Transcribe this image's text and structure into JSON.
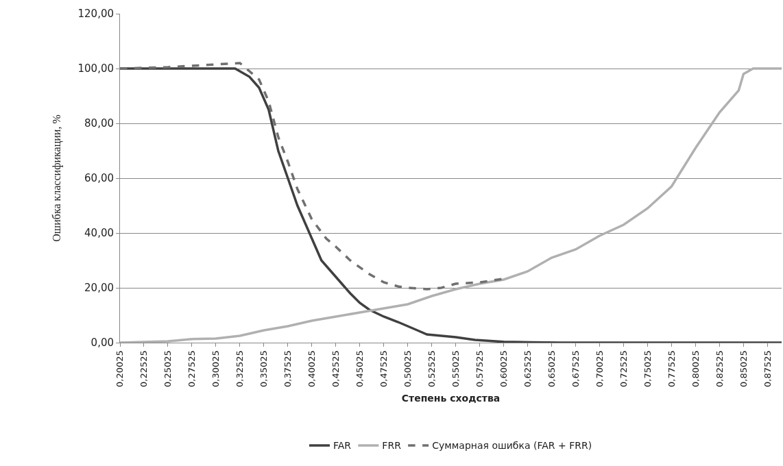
{
  "chart_data": {
    "type": "line",
    "xlabel": "Степень сходства",
    "ylabel": "Ошибка классификации, %",
    "xlim": [
      0.20025,
      0.89
    ],
    "xticks": [
      {
        "value": 0.20025,
        "label": "0,20025"
      },
      {
        "value": 0.22525,
        "label": "0,22525"
      },
      {
        "value": 0.25025,
        "label": "0,25025"
      },
      {
        "value": 0.27525,
        "label": "0,27525"
      },
      {
        "value": 0.30025,
        "label": "0,30025"
      },
      {
        "value": 0.32525,
        "label": "0,32525"
      },
      {
        "value": 0.35025,
        "label": "0,35025"
      },
      {
        "value": 0.37525,
        "label": "0,37525"
      },
      {
        "value": 0.40025,
        "label": "0,40025"
      },
      {
        "value": 0.42525,
        "label": "0,42525"
      },
      {
        "value": 0.45025,
        "label": "0,45025"
      },
      {
        "value": 0.47525,
        "label": "0,47525"
      },
      {
        "value": 0.50025,
        "label": "0,50025"
      },
      {
        "value": 0.52525,
        "label": "0,52525"
      },
      {
        "value": 0.55025,
        "label": "0,55025"
      },
      {
        "value": 0.57525,
        "label": "0,57525"
      },
      {
        "value": 0.60025,
        "label": "0,60025"
      },
      {
        "value": 0.62525,
        "label": "0,62525"
      },
      {
        "value": 0.65025,
        "label": "0,65025"
      },
      {
        "value": 0.67525,
        "label": "0,67525"
      },
      {
        "value": 0.70025,
        "label": "0,70025"
      },
      {
        "value": 0.72525,
        "label": "0,72525"
      },
      {
        "value": 0.75025,
        "label": "0,75025"
      },
      {
        "value": 0.77525,
        "label": "0,77525"
      },
      {
        "value": 0.80025,
        "label": "0,80025"
      },
      {
        "value": 0.82525,
        "label": "0,82525"
      },
      {
        "value": 0.85025,
        "label": "0,85025"
      },
      {
        "value": 0.87525,
        "label": "0,87525"
      }
    ],
    "ylim": [
      0,
      120
    ],
    "yticks": [
      {
        "value": 0,
        "label": "0,00"
      },
      {
        "value": 20,
        "label": "20,00"
      },
      {
        "value": 40,
        "label": "40,00"
      },
      {
        "value": 60,
        "label": "60,00"
      },
      {
        "value": 80,
        "label": "80,00"
      },
      {
        "value": 100,
        "label": "100,00"
      },
      {
        "value": 120,
        "label": "120,00"
      }
    ],
    "grid": "y",
    "legend": "bottom",
    "marker": "none",
    "series": [
      {
        "name": "FAR",
        "color": "#404040",
        "line_style": "solid",
        "x": [
          0.20025,
          0.32025,
          0.33525,
          0.34525,
          0.35525,
          0.36525,
          0.37525,
          0.38525,
          0.39525,
          0.40025,
          0.41025,
          0.42025,
          0.43025,
          0.44025,
          0.45025,
          0.46025,
          0.47525,
          0.49025,
          0.50025,
          0.51025,
          0.52025,
          0.53525,
          0.55025,
          0.57025,
          0.60025,
          0.63025,
          0.66025,
          0.89
        ],
        "values": [
          100,
          100,
          97,
          93,
          85,
          70,
          60,
          50,
          42,
          38,
          30,
          26,
          22,
          18,
          14.5,
          12,
          9.5,
          7.5,
          6,
          4.5,
          3,
          2.5,
          2,
          1,
          0.3,
          0.1,
          0,
          0
        ]
      },
      {
        "name": "FRR",
        "color": "#b0b0b0",
        "line_style": "solid",
        "x": [
          0.20025,
          0.25025,
          0.27525,
          0.30025,
          0.32525,
          0.35025,
          0.37525,
          0.40025,
          0.42525,
          0.45025,
          0.47525,
          0.50025,
          0.52525,
          0.55025,
          0.57525,
          0.60025,
          0.62525,
          0.65025,
          0.67525,
          0.70025,
          0.72525,
          0.75025,
          0.77525,
          0.80025,
          0.82525,
          0.84525,
          0.85025,
          0.86025,
          0.89
        ],
        "values": [
          0,
          0.5,
          1.3,
          1.5,
          2.5,
          4.5,
          6,
          8,
          9.5,
          11,
          12.5,
          14,
          17,
          19.5,
          21.5,
          23,
          26,
          31,
          34,
          39,
          43,
          49,
          57,
          71,
          84,
          92,
          98,
          100,
          100
        ]
      },
      {
        "name": "Суммарная ошибка (FAR + FRR)",
        "color": "#707070",
        "line_style": "dashed",
        "x": [
          0.20025,
          0.25025,
          0.30025,
          0.32525,
          0.33525,
          0.34525,
          0.35525,
          0.36525,
          0.37525,
          0.38525,
          0.40025,
          0.41525,
          0.42525,
          0.44025,
          0.46025,
          0.47525,
          0.49025,
          0.50025,
          0.52025,
          0.53525,
          0.55025,
          0.57525,
          0.60025
        ],
        "values": [
          100,
          100.5,
          101.5,
          102,
          99,
          96,
          88,
          75,
          66,
          56,
          45,
          38,
          35,
          30,
          25,
          22,
          20.5,
          20,
          19.5,
          20,
          21.5,
          22,
          23.3
        ]
      }
    ]
  }
}
